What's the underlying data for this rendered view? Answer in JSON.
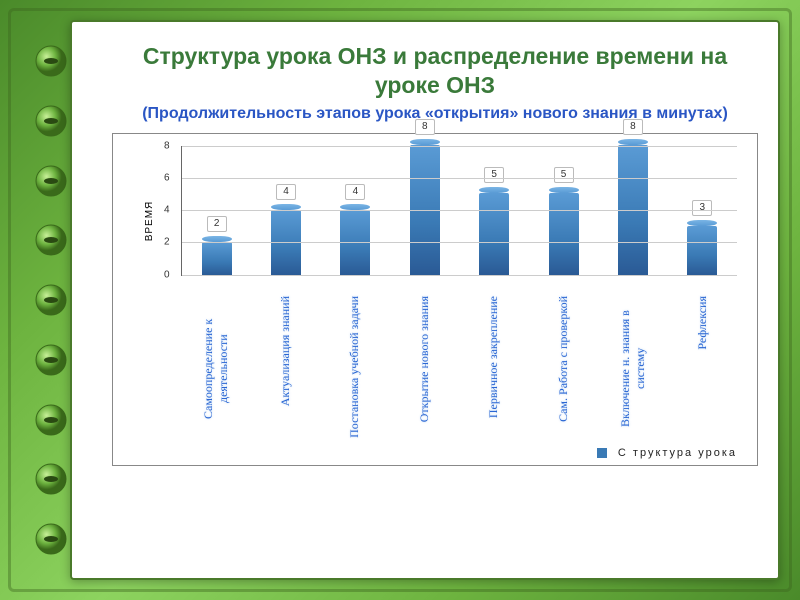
{
  "title": {
    "main": "Структура урока ОНЗ и распределение времени на уроке ОНЗ",
    "sub": "(Продолжительность этапов урока «открытия» нового знания в минутах)",
    "main_color": "#3a7a3a",
    "sub_color": "#2a56c4"
  },
  "chart": {
    "type": "bar",
    "y_axis_label": "ВРЕМЯ",
    "ylim": [
      0,
      8
    ],
    "ytick_step": 2,
    "yticks": [
      "0",
      "2",
      "4",
      "6",
      "8"
    ],
    "bar_color_gradient": [
      "#5a9bd5",
      "#3a7ab5",
      "#2a5a95"
    ],
    "grid_color": "#cccccc",
    "background_color": "#ffffff",
    "label_color": "#2a66d4",
    "value_box_border": "#bbbbbb",
    "categories": [
      "Самоопределение к деятельности",
      "Актуализация знаний",
      "Постановка учебной задачи",
      "Открытие нового знания",
      "Первичное закрепление",
      "Сам. Работа с проверкой",
      "Включение н. знания в систему",
      "Рефлексия"
    ],
    "values": [
      2,
      4,
      4,
      8,
      5,
      5,
      8,
      3
    ]
  },
  "legend": "С труктура   урока",
  "frame": {
    "background_gradient": [
      "#4a8a2a",
      "#6db33f",
      "#8dd35f"
    ],
    "notebook_bg": "#ffffff",
    "notebook_border": "#4a7a2a"
  }
}
